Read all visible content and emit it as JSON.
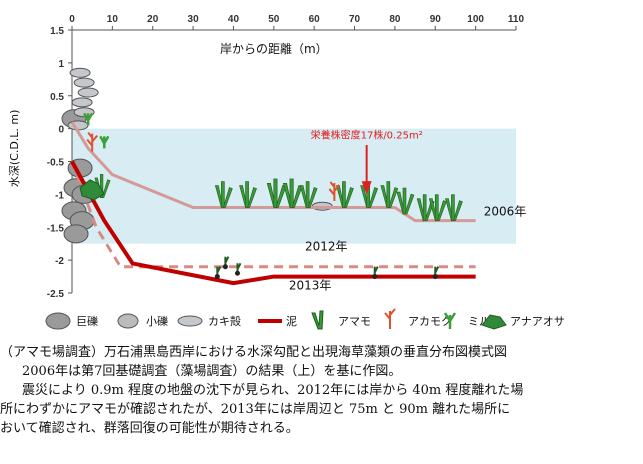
{
  "chart_data": {
    "type": "line",
    "title": "岸からの距離（m）",
    "xlabel": "",
    "ylabel": "水深(C.D.L. m)",
    "xlim": [
      0,
      110
    ],
    "ylim": [
      -2.5,
      1.5
    ],
    "xticks": [
      0,
      10,
      20,
      30,
      40,
      50,
      60,
      70,
      80,
      90,
      100,
      110
    ],
    "yticks": [
      1.5,
      1,
      0.5,
      0,
      -0.5,
      -1,
      -1.5,
      -2,
      -2.5
    ],
    "grid": false,
    "sea_band": [
      -1.75,
      0
    ],
    "series": [
      {
        "name": "2006年",
        "style": "pale",
        "color": "#d49a96",
        "x": [
          0,
          4,
          10,
          30,
          60,
          80,
          85,
          100
        ],
        "y": [
          0.1,
          -0.3,
          -0.7,
          -1.2,
          -1.2,
          -1.2,
          -1.4,
          -1.4
        ]
      },
      {
        "name": "2012年",
        "style": "dashed",
        "color": "#d88a86",
        "x": [
          0,
          6,
          12,
          60,
          100
        ],
        "y": [
          -0.5,
          -1.5,
          -2.1,
          -2.1,
          -2.1
        ]
      },
      {
        "name": "2013年",
        "style": "solid",
        "color": "#c00000",
        "x": [
          0,
          8,
          15,
          40,
          50,
          100
        ],
        "y": [
          -0.5,
          -1.4,
          -2.05,
          -2.35,
          -2.25,
          -2.25
        ]
      }
    ],
    "annotations": [
      {
        "text": "栄養株密度17株/0.25m²",
        "color": "#e02020"
      },
      {
        "text": "2006年"
      },
      {
        "text": "2012年"
      },
      {
        "text": "2013年"
      }
    ],
    "legend": [
      {
        "label": "巨礫",
        "icon": "boulder-icon"
      },
      {
        "label": "小礫",
        "icon": "pebble-icon"
      },
      {
        "label": "カキ殻",
        "icon": "oyster-shell-icon"
      },
      {
        "label": "泥",
        "icon": "mud-line-icon"
      },
      {
        "label": "アマモ",
        "icon": "amamo-seagrass-icon"
      },
      {
        "label": "アカモク",
        "icon": "akamoku-seaweed-icon"
      },
      {
        "label": "ミル",
        "icon": "miru-seaweed-icon"
      },
      {
        "label": "アナアオサ",
        "icon": "anaaosa-seaweed-icon"
      }
    ]
  },
  "caption": {
    "line1": "（アマモ場調査）万石浦黒島西岸における水深勾配と出現海草藻類の垂直分布図模式図",
    "line2": "2006年は第7回基礎調査（藻場調査）の結果（上）を基に作図。",
    "line3": "震災により 0.9m 程度の地盤の沈下が見られ、2012年には岸から 40m 程度離れた場",
    "line4": "所にわずかにアマモが確認されたが、2013年には岸周辺と 75m と 90m 離れた場所に",
    "line5": "おいて確認され、群落回復の可能性が期待される。"
  }
}
